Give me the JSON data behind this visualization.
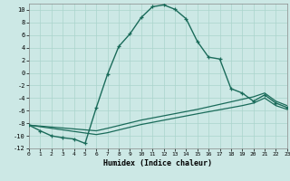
{
  "xlabel": "Humidex (Indice chaleur)",
  "bg_color": "#cce8e5",
  "grid_color": "#aad4cc",
  "line_color": "#1a6b5a",
  "xlim": [
    0,
    23
  ],
  "ylim": [
    -12,
    11
  ],
  "main_x": [
    0,
    1,
    2,
    3,
    4,
    5,
    6,
    7,
    8,
    9,
    10,
    11,
    12,
    13,
    14,
    15,
    16,
    17,
    18,
    19,
    20,
    21,
    22,
    23
  ],
  "main_y": [
    -8.3,
    -9.2,
    -10.0,
    -10.3,
    -10.5,
    -11.2,
    -5.5,
    -0.2,
    4.2,
    6.2,
    8.8,
    10.5,
    10.8,
    10.1,
    8.6,
    5.0,
    2.5,
    2.2,
    -2.5,
    -3.2,
    -4.5,
    -3.5,
    -4.8,
    -5.5
  ],
  "flat1_x": [
    0,
    6,
    7,
    10,
    15,
    19,
    20,
    21,
    22,
    23
  ],
  "flat1_y": [
    -8.3,
    -9.8,
    -9.5,
    -8.2,
    -6.5,
    -5.2,
    -4.8,
    -4.0,
    -5.2,
    -5.8
  ],
  "flat2_x": [
    0,
    6,
    7,
    10,
    15,
    19,
    20,
    21,
    22,
    23
  ],
  "flat2_y": [
    -8.3,
    -9.2,
    -8.8,
    -7.5,
    -5.8,
    -4.2,
    -3.8,
    -3.2,
    -4.5,
    -5.2
  ],
  "xticks": [
    0,
    1,
    2,
    3,
    4,
    5,
    6,
    7,
    8,
    9,
    10,
    11,
    12,
    13,
    14,
    15,
    16,
    17,
    18,
    19,
    20,
    21,
    22,
    23
  ],
  "yticks": [
    -12,
    -10,
    -8,
    -6,
    -4,
    -2,
    0,
    2,
    4,
    6,
    8,
    10
  ]
}
